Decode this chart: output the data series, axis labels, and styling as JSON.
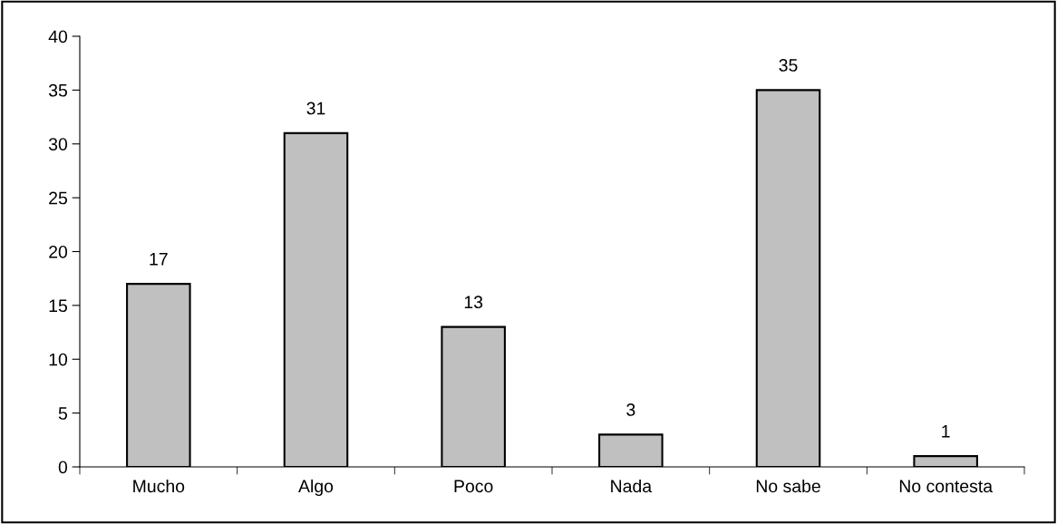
{
  "chart_data": {
    "type": "bar",
    "categories": [
      "Mucho",
      "Algo",
      "Poco",
      "Nada",
      "No sabe",
      "No contesta"
    ],
    "values": [
      17,
      31,
      13,
      3,
      35,
      1
    ],
    "color": "#c0c0c0",
    "ylim": [
      0,
      40
    ],
    "yticks": [
      0,
      5,
      10,
      15,
      20,
      25,
      30,
      35,
      40
    ],
    "grid": false,
    "legend": false,
    "data_labels": true
  }
}
